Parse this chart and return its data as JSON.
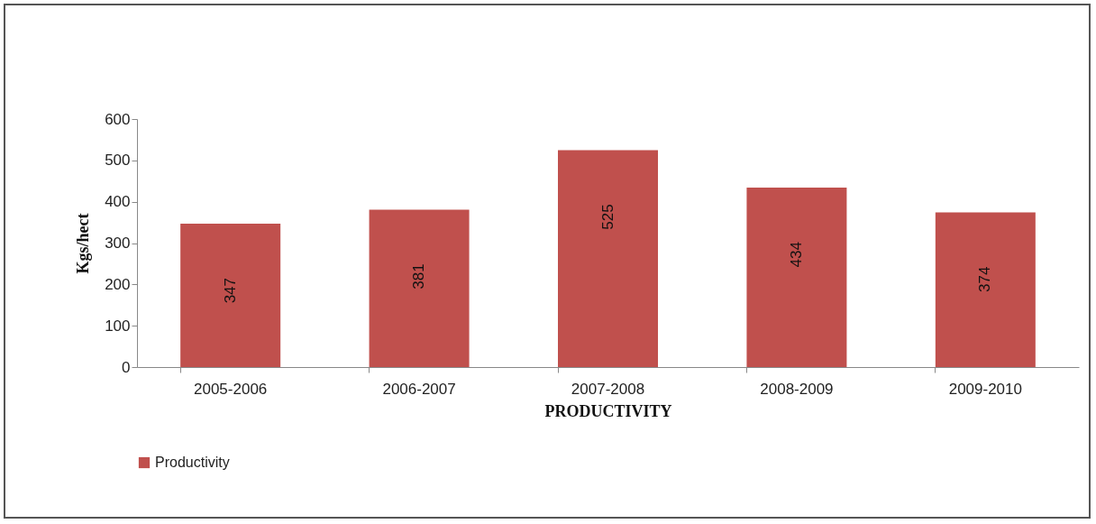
{
  "chart_data": {
    "type": "bar",
    "xlabel": "PRODUCTIVITY",
    "ylabel": "Kgs/hect",
    "categories": [
      "2005-2006",
      "2006-2007",
      "2007-2008",
      "2008-2009",
      "2009-2010"
    ],
    "series": [
      {
        "name": "Productivity",
        "color": "#c0504d",
        "values": [
          347,
          381,
          525,
          434,
          374
        ]
      }
    ],
    "ylim": [
      0,
      600
    ],
    "yticks": [
      0,
      100,
      200,
      300,
      400,
      500,
      600
    ],
    "grid": false,
    "legend": "bottom",
    "data_labels": true
  }
}
